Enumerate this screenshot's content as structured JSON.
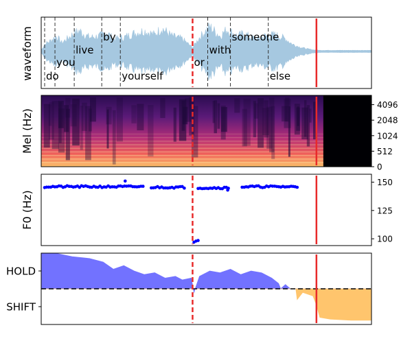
{
  "colors": {
    "waveform": "#a6c8e0",
    "vad_line": "#e82a2a",
    "end_line": "#e82a2a",
    "word_line": "#333333",
    "f0_points": "#0000ff",
    "hold_fill": "#6b6bff",
    "shift_fill": "#ffc266",
    "frame": "#000000"
  },
  "chart_data": [
    {
      "type": "area",
      "name": "waveform-panel",
      "ylabel": "waveform",
      "xlim": [
        0,
        4.8
      ],
      "vad_line_x": 2.2,
      "end_line_x": 4.0,
      "words": [
        {
          "text": "do",
          "start": 0.05,
          "end": 0.2,
          "row": 2
        },
        {
          "text": "you",
          "start": 0.2,
          "end": 0.48,
          "row": 1
        },
        {
          "text": "live",
          "start": 0.48,
          "end": 0.88,
          "row": 0
        },
        {
          "text": "by",
          "start": 0.88,
          "end": 1.15,
          "row": -1
        },
        {
          "text": "yourself",
          "start": 1.15,
          "end": 2.2,
          "row": 2
        },
        {
          "text": "or",
          "start": 2.2,
          "end": 2.42,
          "row": 1
        },
        {
          "text": "with",
          "start": 2.42,
          "end": 2.75,
          "row": 0
        },
        {
          "text": "someone",
          "start": 2.75,
          "end": 3.3,
          "row": -1
        },
        {
          "text": "else",
          "start": 3.3,
          "end": 3.72,
          "row": 2
        }
      ],
      "word_boundaries": [
        0.05,
        0.2,
        0.48,
        0.88,
        1.15,
        2.42,
        2.75,
        3.3
      ],
      "envelope": [
        [
          0.0,
          0.02
        ],
        [
          0.05,
          0.25
        ],
        [
          0.12,
          0.35
        ],
        [
          0.22,
          0.55
        ],
        [
          0.3,
          0.3
        ],
        [
          0.45,
          0.6
        ],
        [
          0.55,
          0.75
        ],
        [
          0.7,
          0.5
        ],
        [
          0.85,
          0.55
        ],
        [
          0.95,
          0.7
        ],
        [
          1.05,
          0.45
        ],
        [
          1.2,
          0.5
        ],
        [
          1.35,
          0.65
        ],
        [
          1.5,
          0.75
        ],
        [
          1.65,
          0.6
        ],
        [
          1.75,
          0.85
        ],
        [
          1.9,
          0.55
        ],
        [
          2.05,
          0.45
        ],
        [
          2.2,
          0.12
        ],
        [
          2.3,
          0.5
        ],
        [
          2.45,
          0.9
        ],
        [
          2.6,
          0.55
        ],
        [
          2.7,
          0.8
        ],
        [
          2.85,
          0.55
        ],
        [
          2.95,
          0.65
        ],
        [
          3.05,
          0.5
        ],
        [
          3.15,
          0.45
        ],
        [
          3.25,
          0.55
        ],
        [
          3.4,
          0.6
        ],
        [
          3.55,
          0.45
        ],
        [
          3.65,
          0.25
        ],
        [
          3.75,
          0.15
        ],
        [
          3.85,
          0.08
        ],
        [
          3.95,
          0.04
        ],
        [
          4.05,
          0.02
        ],
        [
          4.8,
          0.02
        ]
      ]
    },
    {
      "type": "heatmap",
      "name": "mel-spectrogram",
      "ylabel": "Mel (Hz)",
      "yticks": [
        "0",
        "512",
        "1024",
        "2048",
        "4096"
      ],
      "xlim": [
        0,
        4.8
      ],
      "active_until": 4.1,
      "vad_line_x": 2.2,
      "end_line_x": 4.0
    },
    {
      "type": "scatter",
      "name": "f0-panel",
      "ylabel": "F0 (Hz)",
      "xlim": [
        0,
        4.8
      ],
      "ylim": [
        94,
        157
      ],
      "yticks": [
        100,
        125,
        150
      ],
      "vad_line_x": 2.2,
      "end_line_x": 4.0,
      "segments": [
        {
          "start": 0.05,
          "end": 1.48,
          "f0": 146
        },
        {
          "start": 1.6,
          "end": 2.08,
          "f0": 145.5
        },
        {
          "start": 2.28,
          "end": 2.72,
          "f0": 145
        },
        {
          "start": 2.92,
          "end": 3.72,
          "f0": 146
        }
      ],
      "extra_points": [
        [
          1.22,
          151
        ],
        [
          2.22,
          97
        ],
        [
          2.25,
          98
        ],
        [
          2.28,
          98.5
        ],
        [
          2.71,
          143
        ]
      ]
    },
    {
      "type": "area",
      "name": "turn-taking-panel",
      "yticklabels": [
        "HOLD",
        "SHIFT"
      ],
      "xlim": [
        0,
        4.8
      ],
      "ylim": [
        -1,
        1
      ],
      "vad_line_x": 2.2,
      "end_line_x": 4.0,
      "series": [
        {
          "values": [
            [
              0.0,
              1.0
            ],
            [
              0.2,
              1.0
            ],
            [
              0.45,
              0.9
            ],
            [
              0.7,
              0.85
            ],
            [
              0.9,
              0.75
            ],
            [
              1.05,
              0.55
            ],
            [
              1.2,
              0.65
            ],
            [
              1.35,
              0.5
            ],
            [
              1.5,
              0.4
            ],
            [
              1.65,
              0.45
            ],
            [
              1.8,
              0.3
            ],
            [
              1.95,
              0.35
            ],
            [
              2.05,
              0.25
            ],
            [
              2.18,
              0.3
            ],
            [
              2.22,
              -0.1
            ],
            [
              2.3,
              0.35
            ],
            [
              2.45,
              0.5
            ],
            [
              2.6,
              0.45
            ],
            [
              2.75,
              0.55
            ],
            [
              2.9,
              0.4
            ],
            [
              3.05,
              0.5
            ],
            [
              3.2,
              0.45
            ],
            [
              3.35,
              0.3
            ],
            [
              3.45,
              0.15
            ],
            [
              3.48,
              0.0
            ],
            [
              3.55,
              0.12
            ],
            [
              3.62,
              0.0
            ],
            [
              4.8,
              0.0
            ]
          ]
        },
        {
          "values": [
            [
              0.0,
              0.0
            ],
            [
              3.7,
              0.0
            ],
            [
              3.72,
              -0.3
            ],
            [
              3.8,
              -0.1
            ],
            [
              3.95,
              -0.2
            ],
            [
              4.0,
              -0.45
            ],
            [
              4.05,
              -0.8
            ],
            [
              4.2,
              -0.85
            ],
            [
              4.5,
              -0.88
            ],
            [
              4.75,
              -0.88
            ],
            [
              4.8,
              -0.88
            ]
          ]
        }
      ]
    }
  ]
}
